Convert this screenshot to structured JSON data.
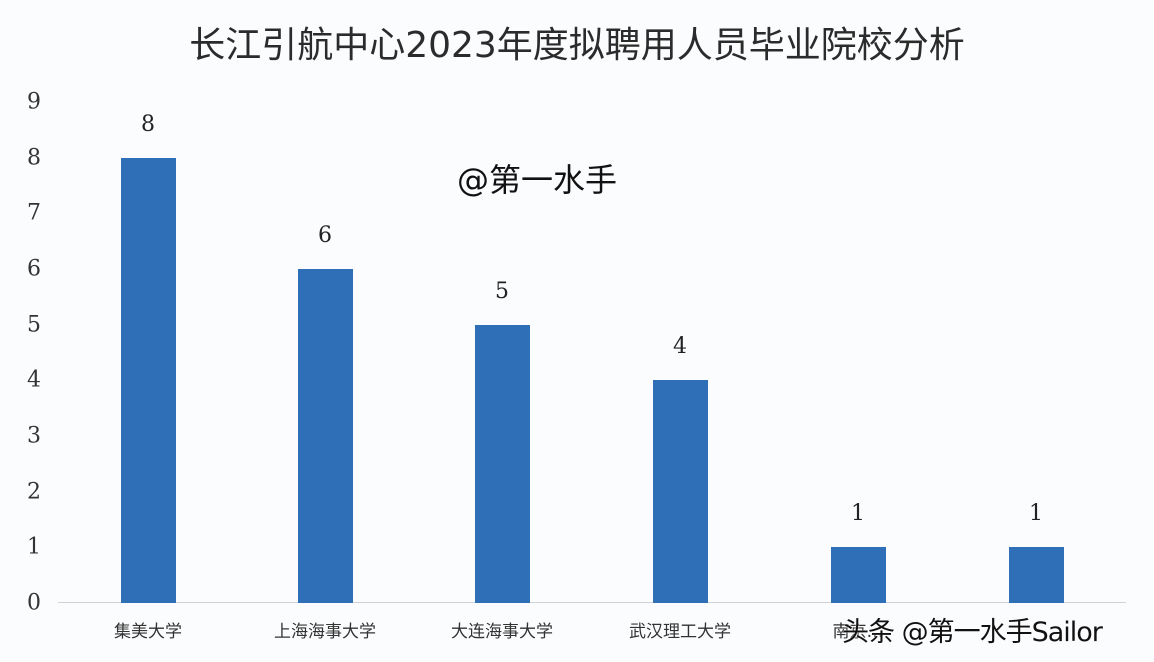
{
  "chart_data": {
    "type": "bar",
    "title": "长江引航中心2023年度拟聘用人员毕业院校分析",
    "xlabel": "",
    "ylabel": "",
    "categories": [
      "集美大学",
      "上海海事大学",
      "大连海事大学",
      "武汉理工大学",
      "南京…",
      ""
    ],
    "values": [
      8,
      6,
      5,
      4,
      1,
      1
    ],
    "data_labels": [
      "8",
      "6",
      "5",
      "4",
      "1",
      "1"
    ],
    "yticks": [
      "0",
      "1",
      "2",
      "3",
      "4",
      "5",
      "6",
      "7",
      "8",
      "9"
    ],
    "ylim": [
      0,
      9
    ],
    "grid": false,
    "legend": null,
    "bar_color": "#2e6fb7"
  },
  "watermarks": {
    "center": "@第一水手",
    "corner": "头条 @第一水手Sailor"
  }
}
